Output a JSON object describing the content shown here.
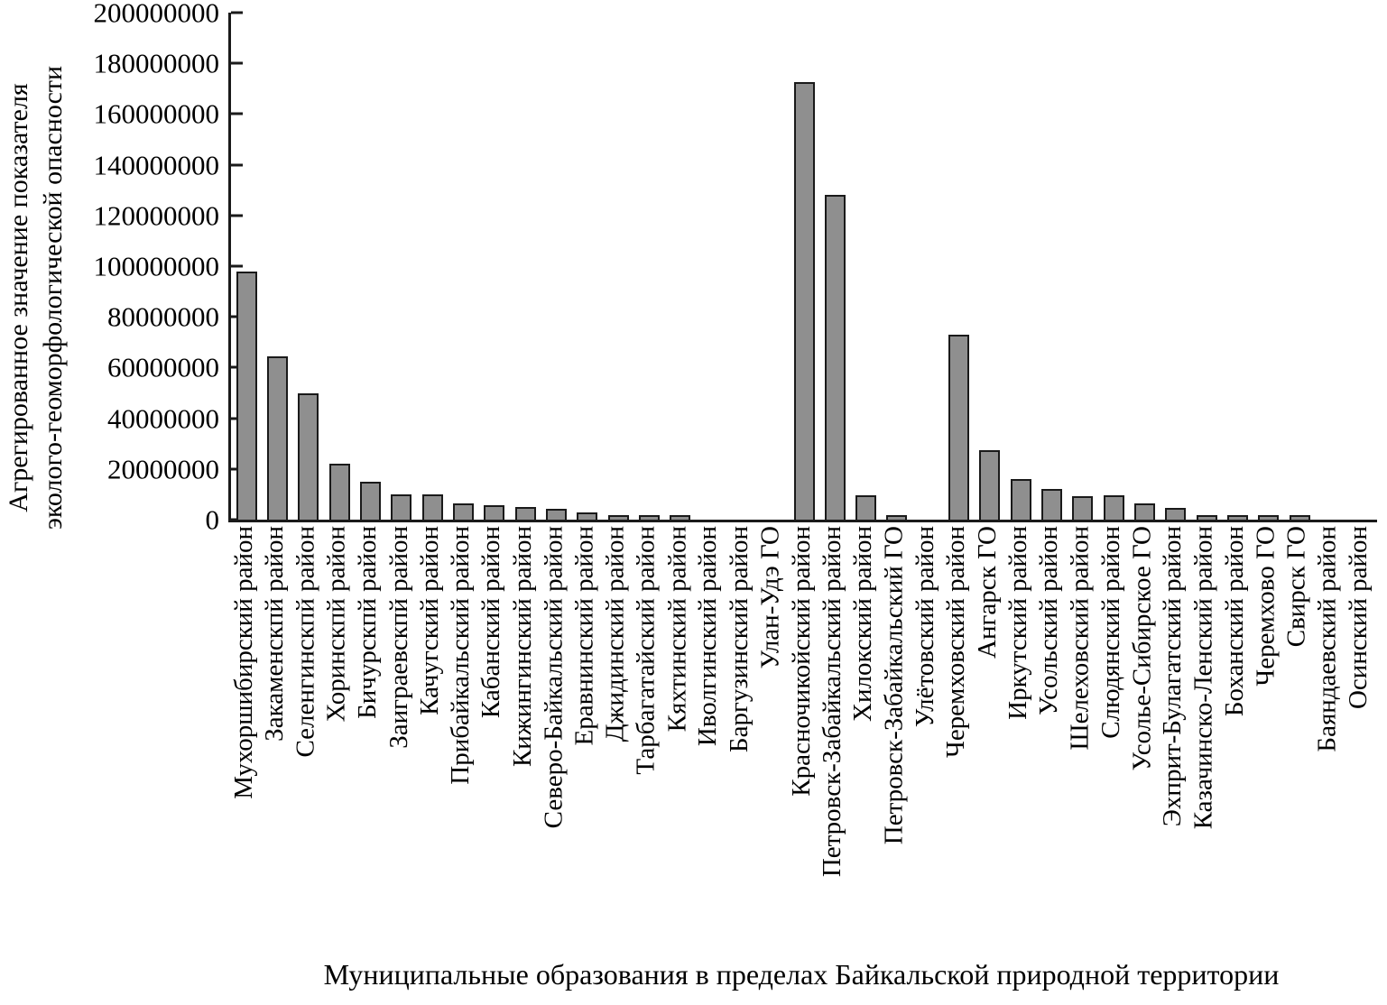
{
  "chart_data": {
    "type": "bar",
    "title": "",
    "xlabel": "Муниципальные образования в пределах Байкальской природной территории",
    "ylabel_lines": {
      "line1": "Агрегированное значение показателя",
      "line2": "эколого-геоморфологической опасности"
    },
    "ylim": [
      0,
      200000000
    ],
    "grid": false,
    "legend_position": "none",
    "bar_fill_color": "#8f8f8f",
    "bar_border_color": "#1a1a1a",
    "y_ticks": [
      {
        "value": 0,
        "label": "0"
      },
      {
        "value": 20000000,
        "label": "20000000"
      },
      {
        "value": 40000000,
        "label": "40000000"
      },
      {
        "value": 60000000,
        "label": "60000000"
      },
      {
        "value": 80000000,
        "label": "80000000"
      },
      {
        "value": 100000000,
        "label": "100000000"
      },
      {
        "value": 120000000,
        "label": "120000000"
      },
      {
        "value": 140000000,
        "label": "140000000"
      },
      {
        "value": 160000000,
        "label": "160000000"
      },
      {
        "value": 180000000,
        "label": "180000000"
      },
      {
        "value": 200000000,
        "label": "200000000"
      }
    ],
    "categories": [
      "Мухоршибирский район",
      "Закаменскпй район",
      "Селенгинскпй район",
      "Хоринскпй район",
      "Бичурскпй район",
      "Заиграевскпй район",
      "Качугский район",
      "Прибайкальский район",
      "Кабанский район",
      "Кижингинский район",
      "Северо-Байкальский район",
      "Еравнинский район",
      "Джидинский район",
      "Тарбагатайский район",
      "Кяхтинский район",
      "Иволгинский район",
      "Баргузинский район",
      "Улан-Удэ ГО",
      "Красночикойский район",
      "Петровск-Забайкальский район",
      "Хилокский район",
      "Петровск-Забайкальский ГО",
      "Улётовский район",
      "Черемховский район",
      "Ангарск ГО",
      "Иркутский район",
      "Усольский район",
      "Шелеховский район",
      "Слюдянский район",
      "Усолье-Сибирское ГО",
      "Эхприт-Булагатский район",
      "Казачинско-Ленский район",
      "Боханский район",
      "Черемхово ГО",
      "Свирск ГО",
      "Баяндаевский район",
      "Осинский район"
    ],
    "values": [
      98000000,
      64500000,
      50000000,
      22000000,
      15000000,
      10000000,
      9800000,
      6300000,
      5600000,
      5000000,
      4400000,
      2900000,
      1000000,
      1000000,
      900000,
      0,
      0,
      0,
      172500000,
      128000000,
      9500000,
      1500000,
      0,
      73000000,
      27500000,
      16000000,
      12000000,
      9300000,
      9500000,
      6300000,
      4600000,
      1800000,
      500000,
      500000,
      500000,
      0,
      0
    ]
  }
}
